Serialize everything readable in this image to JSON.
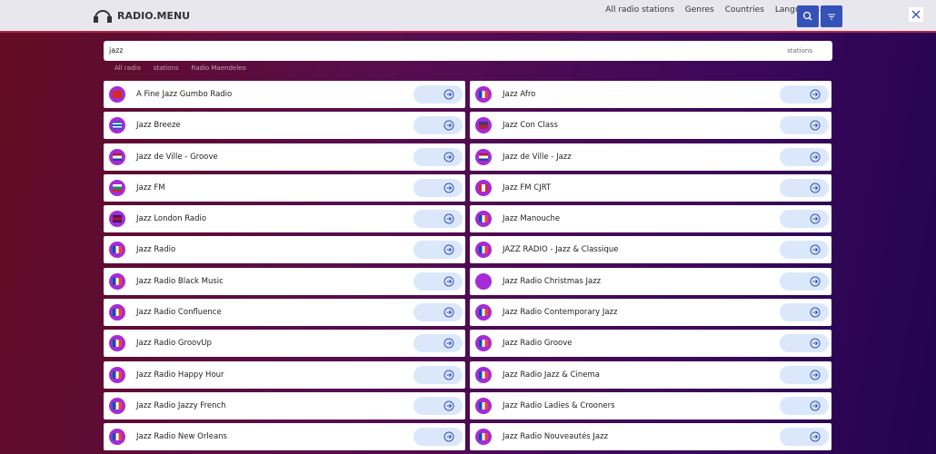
{
  "header": {
    "logo": "RADIO.MENU",
    "nav": [
      "All radio stations",
      "Genres",
      "Countries",
      "Languages"
    ]
  },
  "search": {
    "query": "jazz",
    "scope": "stations"
  },
  "breadcrumb": [
    "All radio",
    "stations",
    "Radio Maendeleo"
  ],
  "stations": [
    "A Fine Jazz Gumbo Radio",
    "Jazz Afro",
    "Jazz Breeze",
    "Jazz Con Class",
    "Jazz de Ville - Groove",
    "Jazz de Ville - Jazz",
    "Jazz FM",
    "Jazz FM CJRT",
    "Jazz London Radio",
    "Jazz Manouche",
    "Jazz Radio",
    "JAZZ RADIO - Jazz & Classique",
    "Jazz Radio Black Music",
    "Jazz Radio Christmas Jazz",
    "Jazz Radio Confluence",
    "Jazz Radio Contemporary Jazz",
    "Jazz Radio GroovUp",
    "Jazz Radio Groove",
    "Jazz Radio Happy Hour",
    "Jazz Radio Jazz & Cinema",
    "Jazz Radio Jazzy French",
    "Jazz Radio Ladies & Crooners",
    "Jazz Radio New Orleans",
    "Jazz Radio Nouveautés Jazz"
  ]
}
